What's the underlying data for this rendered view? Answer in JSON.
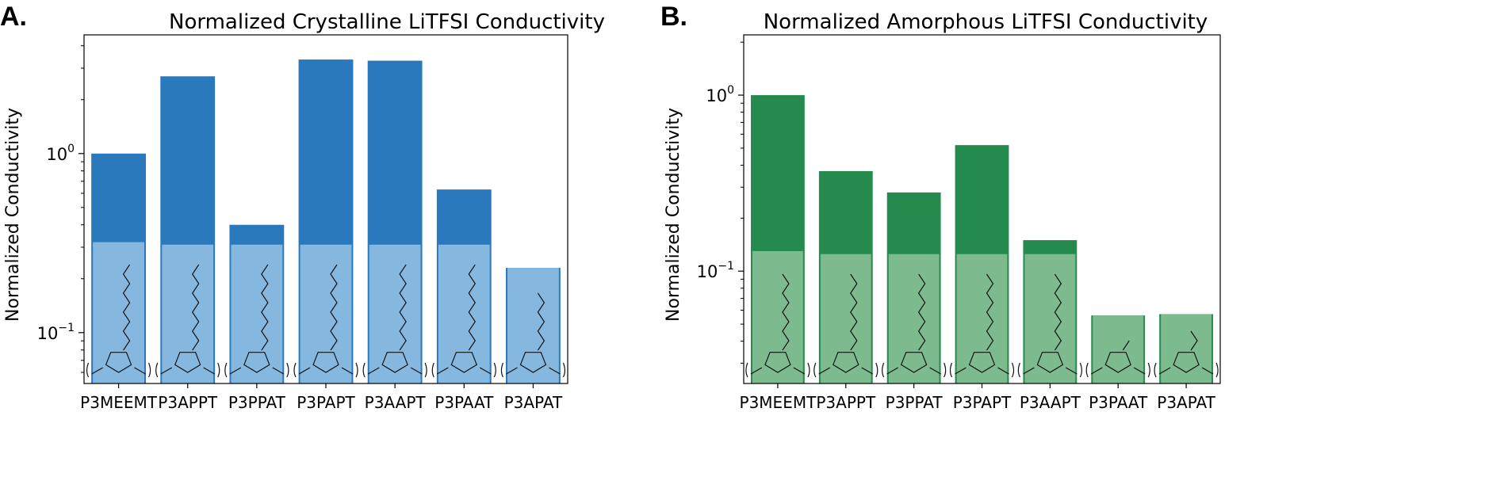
{
  "chart_data": [
    {
      "type": "bar",
      "panel_label": "A.",
      "title": "Normalized Crystalline LiTFSI Conductivity",
      "xlabel": "",
      "ylabel": "Normalized Conductivity",
      "yscale": "log",
      "ylim": [
        0.052,
        4.6
      ],
      "yticks": [
        {
          "value": 0.1,
          "base": "10",
          "exp": "−1"
        },
        {
          "value": 1,
          "base": "10",
          "exp": "0"
        }
      ],
      "categories": [
        "P3MEEMT",
        "P3APPT",
        "P3PPAT",
        "P3PAPT",
        "P3AAPT",
        "P3PAAT",
        "P3APAT"
      ],
      "values": [
        1.0,
        2.7,
        0.4,
        3.35,
        3.3,
        0.63,
        0.23
      ],
      "bar_color": "#2a79bd",
      "structure_fill": "#86b8df",
      "structure_top": [
        0.32,
        0.31,
        0.31,
        0.31,
        0.31,
        0.31,
        0.23
      ],
      "grid": false
    },
    {
      "type": "bar",
      "panel_label": "B.",
      "title": "Normalized Amorphous LiTFSI Conductivity",
      "xlabel": "",
      "ylabel": "Normalized Conductivity",
      "yscale": "log",
      "ylim": [
        0.023,
        2.2
      ],
      "yticks": [
        {
          "value": 0.1,
          "base": "10",
          "exp": "−1"
        },
        {
          "value": 1,
          "base": "10",
          "exp": "0"
        }
      ],
      "categories": [
        "P3MEEMT",
        "P3APPT",
        "P3PPAT",
        "P3PAPT",
        "P3AAPT",
        "P3PAAT",
        "P3APAT"
      ],
      "values": [
        1.0,
        0.37,
        0.28,
        0.52,
        0.15,
        0.056,
        0.057
      ],
      "bar_color": "#248a4e",
      "structure_fill": "#7dbb8e",
      "structure_top": [
        0.13,
        0.125,
        0.125,
        0.125,
        0.125,
        0.056,
        0.057
      ],
      "grid": false
    }
  ]
}
